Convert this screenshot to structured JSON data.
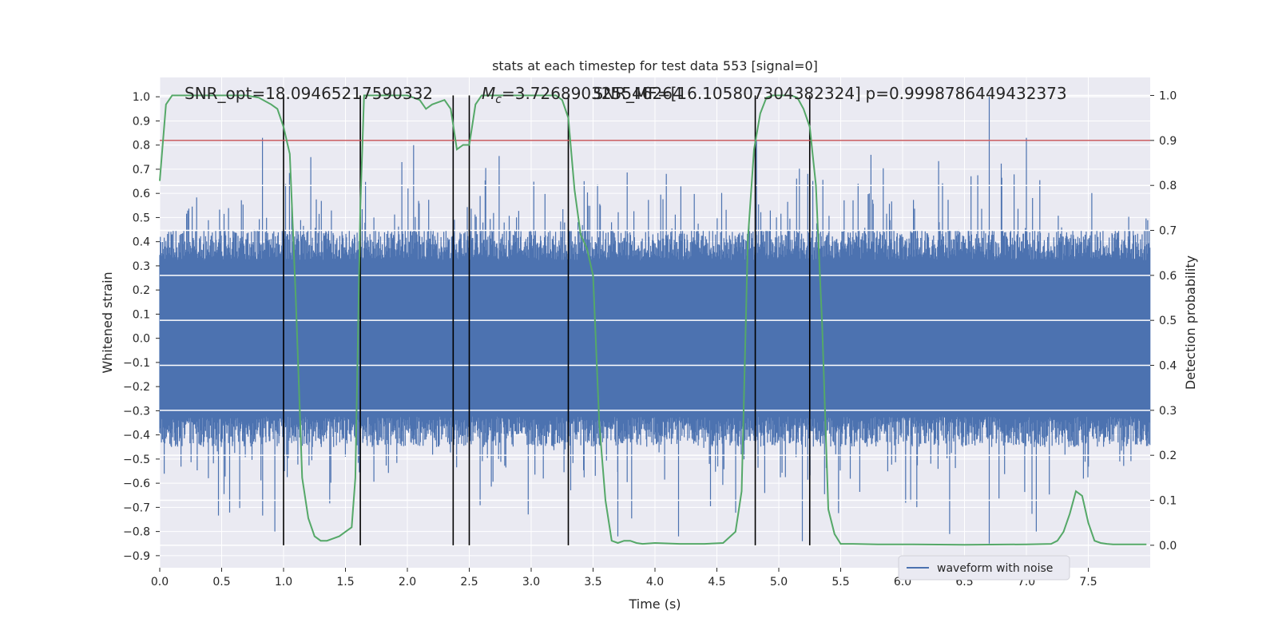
{
  "chart_data": {
    "type": "line",
    "title": "stats at each timestep for test data 553 [signal=0]",
    "xlabel": "Time (s)",
    "ylabel_left": "Whitened strain",
    "ylabel_right": "Detection probability",
    "xlim": [
      0.0,
      8.0
    ],
    "ylim_left": [
      -0.95,
      1.08
    ],
    "ylim_right": [
      -0.05,
      1.04
    ],
    "x_ticks": [
      "0.0",
      "0.5",
      "1.0",
      "1.5",
      "2.0",
      "2.5",
      "3.0",
      "3.5",
      "4.0",
      "4.5",
      "5.0",
      "5.5",
      "6.0",
      "6.5",
      "7.0",
      "7.5"
    ],
    "y_left_ticks": [
      "-0.9",
      "-0.8",
      "-0.7",
      "-0.6",
      "-0.5",
      "-0.4",
      "-0.3",
      "-0.2",
      "-0.1",
      "0.0",
      "0.1",
      "0.2",
      "0.3",
      "0.4",
      "0.5",
      "0.6",
      "0.7",
      "0.8",
      "0.9",
      "1.0"
    ],
    "y_right_ticks": [
      "0.0",
      "0.1",
      "0.2",
      "0.3",
      "0.4",
      "0.5",
      "0.6",
      "0.7",
      "0.8",
      "0.9",
      "1.0"
    ],
    "grid": true,
    "legend_placement": "lower-right",
    "colors": {
      "background": "#eaeaf2",
      "grid": "#ffffff",
      "waveform": "#4c72b0",
      "probability": "#55a868",
      "threshold": "#c44e52",
      "marker_lines": "#000000",
      "text": "#262626"
    },
    "annotations": [
      "SNR_opt=18.09465217590332",
      "M_c=3.726890325546264",
      "SNR_MF=[16.105807304382324]",
      "p=0.9998786449432373"
    ],
    "threshold_probability": 0.9,
    "vertical_markers_s": [
      1.0,
      1.62,
      2.37,
      2.5,
      3.3,
      4.81,
      5.25
    ],
    "waveform": {
      "name": "waveform with noise",
      "sample_rate_hz": 2048,
      "envelope": {
        "typical_min": -0.45,
        "typical_max": 0.45,
        "peak_max": 1.0,
        "peak_min": -0.85
      }
    },
    "series": [
      {
        "name": "waveform with noise",
        "axis": "left"
      },
      {
        "axis": "right",
        "x": [
          0.0,
          0.05,
          0.1,
          0.2,
          0.3,
          0.5,
          0.7,
          0.8,
          0.9,
          0.95,
          1.0,
          1.05,
          1.1,
          1.15,
          1.2,
          1.25,
          1.3,
          1.35,
          1.4,
          1.45,
          1.5,
          1.55,
          1.58,
          1.62,
          1.65,
          1.7,
          1.8,
          2.0,
          2.1,
          2.15,
          2.2,
          2.3,
          2.35,
          2.4,
          2.45,
          2.5,
          2.55,
          2.6,
          2.7,
          2.8,
          3.0,
          3.2,
          3.25,
          3.3,
          3.35,
          3.4,
          3.45,
          3.5,
          3.55,
          3.6,
          3.65,
          3.7,
          3.75,
          3.8,
          3.85,
          3.9,
          4.0,
          4.2,
          4.4,
          4.55,
          4.65,
          4.7,
          4.75,
          4.8,
          4.85,
          4.9,
          4.95,
          5.0,
          5.05,
          5.1,
          5.15,
          5.2,
          5.25,
          5.3,
          5.35,
          5.4,
          5.45,
          5.5,
          5.6,
          5.8,
          6.0,
          6.5,
          7.0,
          7.2,
          7.25,
          7.3,
          7.35,
          7.4,
          7.45,
          7.5,
          7.55,
          7.6,
          7.65,
          7.7,
          7.8,
          7.97
        ],
        "values": [
          0.81,
          0.98,
          1.0,
          1.0,
          1.0,
          1.0,
          1.0,
          0.995,
          0.98,
          0.97,
          0.93,
          0.87,
          0.54,
          0.15,
          0.06,
          0.02,
          0.01,
          0.01,
          0.015,
          0.02,
          0.03,
          0.04,
          0.15,
          0.75,
          1.0,
          1.0,
          1.0,
          1.0,
          0.99,
          0.97,
          0.98,
          0.99,
          0.97,
          0.88,
          0.89,
          0.89,
          0.98,
          1.0,
          1.0,
          1.0,
          1.0,
          1.0,
          0.99,
          0.95,
          0.79,
          0.69,
          0.66,
          0.6,
          0.27,
          0.1,
          0.01,
          0.005,
          0.01,
          0.01,
          0.005,
          0.003,
          0.005,
          0.003,
          0.003,
          0.005,
          0.03,
          0.12,
          0.68,
          0.88,
          0.96,
          0.995,
          1.0,
          1.0,
          1.0,
          1.0,
          0.995,
          0.97,
          0.93,
          0.8,
          0.49,
          0.08,
          0.025,
          0.003,
          0.003,
          0.002,
          0.002,
          0.001,
          0.002,
          0.003,
          0.01,
          0.03,
          0.07,
          0.12,
          0.11,
          0.05,
          0.01,
          0.005,
          0.003,
          0.002,
          0.002,
          0.002
        ]
      }
    ]
  }
}
